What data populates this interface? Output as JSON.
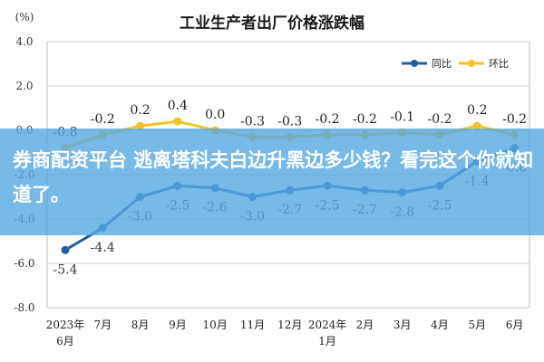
{
  "chart_data": {
    "type": "line",
    "title": "工业生产者出厂价格涨跌幅",
    "unit_label": "(%)",
    "ylim": [
      -8.0,
      4.0
    ],
    "y_ticks": [
      "4.0",
      "2.0",
      "0.0",
      "-2.0",
      "-4.0",
      "-6.0",
      "-8.0"
    ],
    "y_tick_values": [
      4.0,
      2.0,
      0.0,
      -2.0,
      -4.0,
      -6.0,
      -8.0
    ],
    "categories": [
      [
        "2023年",
        "6月"
      ],
      [
        "7月"
      ],
      [
        "8月"
      ],
      [
        "9月"
      ],
      [
        "10月"
      ],
      [
        "11月"
      ],
      [
        "12月"
      ],
      [
        "2024年",
        "1月"
      ],
      [
        "2月"
      ],
      [
        "3月"
      ],
      [
        "4月"
      ],
      [
        "5月"
      ],
      [
        "6月"
      ]
    ],
    "grid": true,
    "legend_position": "top-right",
    "series": [
      {
        "name": "同比",
        "color": "#1f5fa8",
        "values": [
          -5.4,
          -4.4,
          -3.0,
          -2.5,
          -2.6,
          -3.0,
          -2.7,
          -2.5,
          -2.7,
          -2.8,
          -2.5,
          -1.4,
          -0.8
        ],
        "labels": [
          "-5.4",
          "-4.4",
          "-3.0",
          "-2.5",
          "-2.6",
          "-3.0",
          "-2.7",
          "-2.5",
          "-2.7",
          "-2.8",
          "-2.5",
          "-1.4",
          "-0.8"
        ]
      },
      {
        "name": "环比",
        "color": "#f4c324",
        "values": [
          -0.8,
          -0.2,
          0.2,
          0.4,
          0.0,
          -0.3,
          -0.3,
          -0.2,
          -0.2,
          -0.1,
          -0.2,
          0.2,
          -0.2
        ],
        "labels": [
          "-0.8",
          "-0.2",
          "0.2",
          "0.4",
          "0.0",
          "-0.3",
          "-0.3",
          "-0.2",
          "-0.2",
          "-0.1",
          "-0.2",
          "0.2",
          "-0.2"
        ]
      }
    ]
  },
  "overlay": {
    "text": "券商配资平台 逃离塔科夫白边升黑边多少钱？看完这个你就知道了。"
  }
}
